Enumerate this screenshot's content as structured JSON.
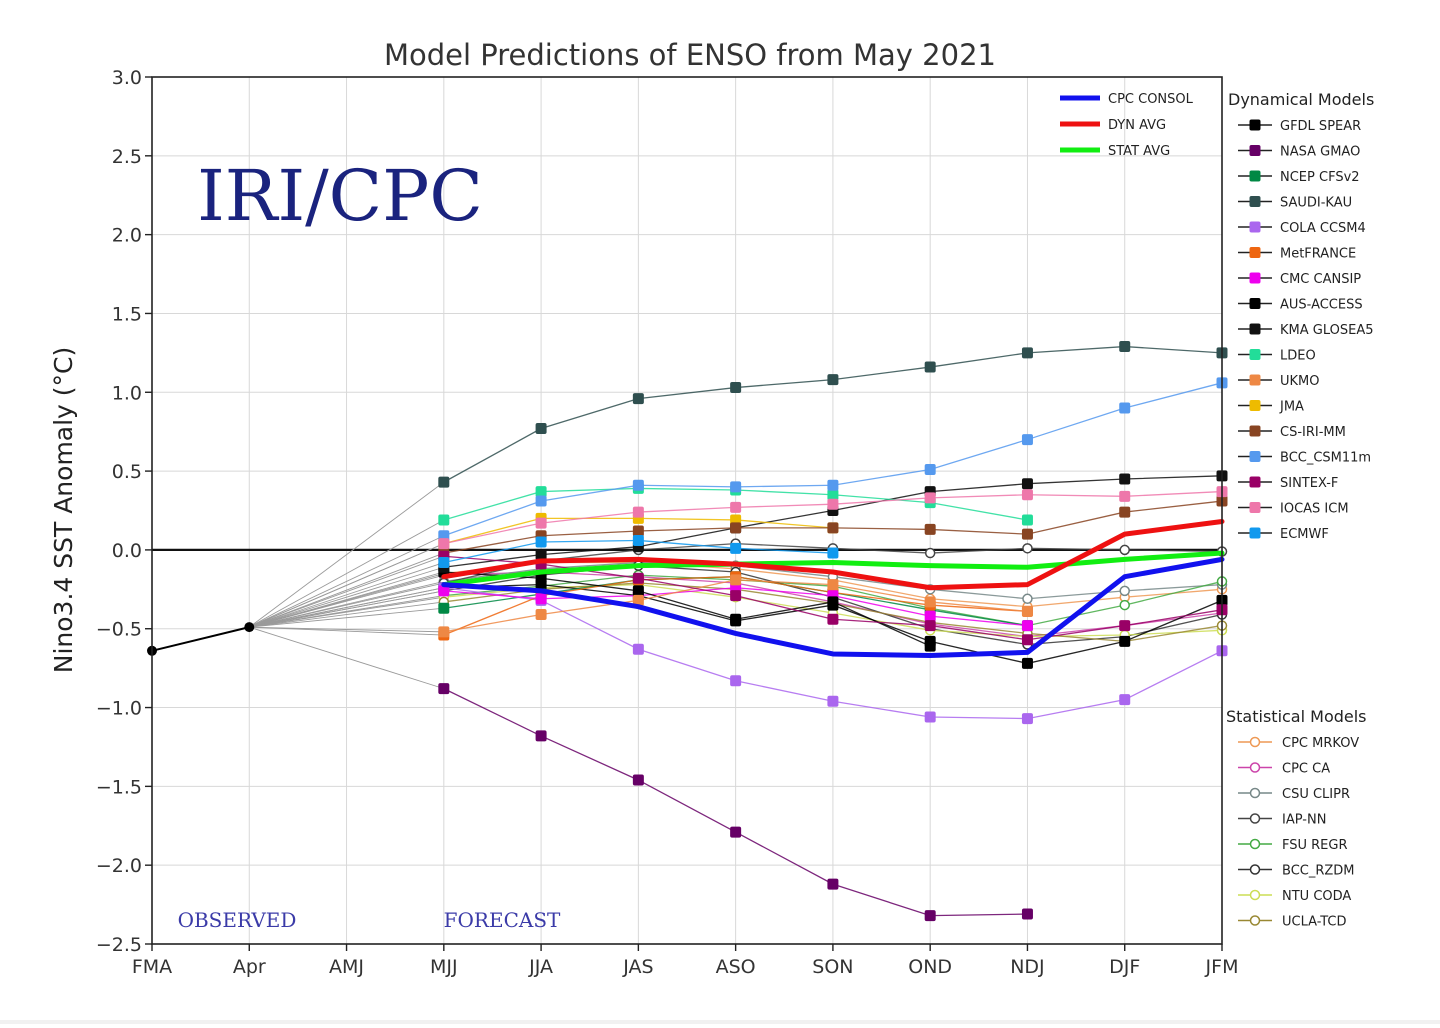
{
  "chart_data": {
    "type": "line",
    "title": "Model Predictions of ENSO from May 2021",
    "ylabel": "Nino3.4 SST Anomaly (°C)",
    "xlabel": "",
    "watermark": "IRI/CPC",
    "observed_label": "OBSERVED",
    "forecast_label": "FORECAST",
    "categories": [
      "FMA",
      "Apr",
      "AMJ",
      "MJJ",
      "JJA",
      "JAS",
      "ASO",
      "SON",
      "OND",
      "NDJ",
      "DJF",
      "JFM"
    ],
    "ylim": [
      -2.5,
      3.0
    ],
    "yticks": [
      -2.5,
      -2.0,
      -1.5,
      -1.0,
      -0.5,
      0.0,
      0.5,
      1.0,
      1.5,
      2.0,
      2.5,
      3.0
    ],
    "ytick_labels": [
      "−2.5",
      "−2.0",
      "−1.5",
      "−1.0",
      "−0.5",
      "0.0",
      "0.5",
      "1.0",
      "1.5",
      "2.0",
      "2.5",
      "3.0"
    ],
    "grid": true,
    "zero_line": true,
    "observed": {
      "x": [
        "FMA",
        "Apr"
      ],
      "values": [
        -0.64,
        -0.49
      ],
      "color": "#000000"
    },
    "average_legend": [
      {
        "name": "CPC CONSOL",
        "color": "#1111ee"
      },
      {
        "name": "DYN AVG",
        "color": "#ee1111"
      },
      {
        "name": "STAT AVG",
        "color": "#11ee11"
      }
    ],
    "averages": [
      {
        "name": "CPC CONSOL",
        "color": "#1111ee",
        "values": [
          null,
          null,
          null,
          -0.22,
          -0.26,
          -0.36,
          -0.53,
          -0.66,
          -0.67,
          -0.65,
          -0.17,
          -0.06
        ]
      },
      {
        "name": "DYN AVG",
        "color": "#ee1111",
        "values": [
          null,
          null,
          null,
          -0.17,
          -0.07,
          -0.06,
          -0.09,
          -0.14,
          -0.24,
          -0.22,
          0.1,
          0.18
        ]
      },
      {
        "name": "STAT AVG",
        "color": "#11ee11",
        "values": [
          null,
          null,
          null,
          -0.22,
          -0.14,
          -0.1,
          -0.09,
          -0.08,
          -0.1,
          -0.11,
          -0.06,
          -0.02
        ]
      }
    ],
    "dynamical_title": "Dynamical Models",
    "dynamical": [
      {
        "name": "GFDL SPEAR",
        "color": "#000000",
        "values": [
          null,
          null,
          null,
          -0.24,
          -0.22,
          -0.29,
          -0.45,
          -0.35,
          -0.58,
          -0.72,
          -0.58,
          -0.32
        ]
      },
      {
        "name": "NASA GMAO",
        "color": "#660066",
        "values": [
          null,
          null,
          null,
          -0.88,
          -1.18,
          -1.46,
          -1.79,
          -2.12,
          -2.32,
          -2.31,
          null,
          null
        ]
      },
      {
        "name": "NCEP CFSv2",
        "color": "#008844",
        "values": [
          null,
          null,
          null,
          -0.37,
          -0.28,
          -0.19,
          -0.17,
          -0.27,
          -0.38,
          -0.48,
          null,
          null
        ]
      },
      {
        "name": "SAUDI-KAU",
        "color": "#2f4f4f",
        "values": [
          null,
          null,
          null,
          0.43,
          0.77,
          0.96,
          1.03,
          1.08,
          1.16,
          1.25,
          1.29,
          1.25
        ]
      },
      {
        "name": "COLA CCSM4",
        "color": "#aa66ee",
        "values": [
          null,
          null,
          null,
          -0.24,
          -0.32,
          -0.63,
          -0.83,
          -0.96,
          -1.06,
          -1.07,
          -0.95,
          -0.64
        ]
      },
      {
        "name": "MetFRANCE",
        "color": "#ee6611",
        "values": [
          null,
          null,
          null,
          -0.54,
          -0.29,
          -0.19,
          -0.17,
          -0.27,
          -0.35,
          -0.39,
          null,
          null
        ]
      },
      {
        "name": "CMC CANSIP",
        "color": "#ee00ee",
        "values": [
          null,
          null,
          null,
          -0.26,
          -0.31,
          -0.29,
          -0.24,
          -0.29,
          -0.42,
          -0.48,
          null,
          null
        ]
      },
      {
        "name": "AUS-ACCESS",
        "color": "#000000",
        "values": [
          null,
          null,
          null,
          -0.14,
          -0.18,
          -0.26,
          -0.44,
          -0.33,
          -0.61,
          null,
          null,
          null
        ]
      },
      {
        "name": "KMA GLOSEA5",
        "color": "#111111",
        "values": [
          null,
          null,
          null,
          -0.11,
          -0.03,
          0.02,
          0.14,
          0.25,
          0.37,
          0.42,
          0.45,
          0.47
        ]
      },
      {
        "name": "LDEO",
        "color": "#22dd99",
        "values": [
          null,
          null,
          null,
          0.19,
          0.37,
          0.39,
          0.38,
          0.35,
          0.3,
          0.19,
          null,
          null
        ]
      },
      {
        "name": "UKMO",
        "color": "#ee8844",
        "values": [
          null,
          null,
          null,
          -0.52,
          -0.41,
          -0.32,
          -0.19,
          -0.22,
          -0.33,
          -0.39,
          null,
          null
        ]
      },
      {
        "name": "JMA",
        "color": "#eebb00",
        "values": [
          null,
          null,
          null,
          0.04,
          0.2,
          0.2,
          0.19,
          0.14,
          null,
          null,
          null,
          null
        ]
      },
      {
        "name": "CS-IRI-MM",
        "color": "#884422",
        "values": [
          null,
          null,
          null,
          -0.02,
          0.09,
          0.12,
          0.14,
          0.14,
          0.13,
          0.1,
          0.24,
          0.31
        ]
      },
      {
        "name": "BCC_CSM11m",
        "color": "#5599ee",
        "values": [
          null,
          null,
          null,
          0.09,
          0.31,
          0.41,
          0.4,
          0.41,
          0.51,
          0.7,
          0.9,
          1.06
        ]
      },
      {
        "name": "SINTEX-F",
        "color": "#990066",
        "values": [
          null,
          null,
          null,
          -0.04,
          -0.09,
          -0.18,
          -0.29,
          -0.44,
          -0.48,
          -0.57,
          -0.48,
          -0.38
        ]
      },
      {
        "name": "IOCAS ICM",
        "color": "#ee77aa",
        "values": [
          null,
          null,
          null,
          0.04,
          0.17,
          0.24,
          0.27,
          0.29,
          0.33,
          0.35,
          0.34,
          0.37
        ]
      },
      {
        "name": "ECMWF",
        "color": "#1199ee",
        "values": [
          null,
          null,
          null,
          -0.08,
          0.05,
          0.06,
          0.01,
          -0.02,
          null,
          null,
          null,
          null
        ]
      }
    ],
    "statistical_title": "Statistical Models",
    "statistical": [
      {
        "name": "CPC MRKOV",
        "color": "#ee9955",
        "values": [
          null,
          null,
          null,
          -0.15,
          -0.08,
          -0.08,
          -0.12,
          -0.19,
          -0.31,
          -0.36,
          -0.3,
          -0.25
        ]
      },
      {
        "name": "CPC CA",
        "color": "#cc44aa",
        "values": [
          null,
          null,
          null,
          -0.16,
          -0.14,
          -0.17,
          -0.21,
          -0.33,
          -0.47,
          -0.55,
          -0.48,
          -0.4
        ]
      },
      {
        "name": "CSU CLIPR",
        "color": "#778888",
        "values": [
          null,
          null,
          null,
          -0.2,
          -0.12,
          -0.08,
          -0.1,
          -0.17,
          -0.25,
          -0.31,
          -0.26,
          -0.22
        ]
      },
      {
        "name": "IAP-NN",
        "color": "#444444",
        "values": [
          null,
          null,
          null,
          -0.21,
          -0.07,
          0.0,
          0.04,
          0.01,
          -0.02,
          0.01,
          0.0,
          -0.01
        ]
      },
      {
        "name": "FSU REGR",
        "color": "#44aa44",
        "values": [
          null,
          null,
          null,
          -0.29,
          -0.23,
          -0.16,
          -0.19,
          -0.23,
          -0.37,
          -0.48,
          -0.35,
          -0.2
        ]
      },
      {
        "name": "BCC_RZDM",
        "color": "#333333",
        "values": [
          null,
          null,
          null,
          -0.26,
          -0.16,
          -0.1,
          -0.14,
          -0.3,
          -0.5,
          -0.6,
          -0.55,
          -0.41
        ]
      },
      {
        "name": "NTU CODA",
        "color": "#ccdd55",
        "values": [
          null,
          null,
          null,
          -0.3,
          -0.24,
          -0.22,
          -0.3,
          -0.4,
          -0.51,
          -0.55,
          -0.54,
          -0.51
        ]
      },
      {
        "name": "UCLA-TCD",
        "color": "#998833",
        "values": [
          null,
          null,
          null,
          -0.33,
          -0.25,
          -0.21,
          -0.25,
          -0.34,
          -0.46,
          -0.53,
          -0.58,
          -0.48
        ]
      }
    ]
  }
}
